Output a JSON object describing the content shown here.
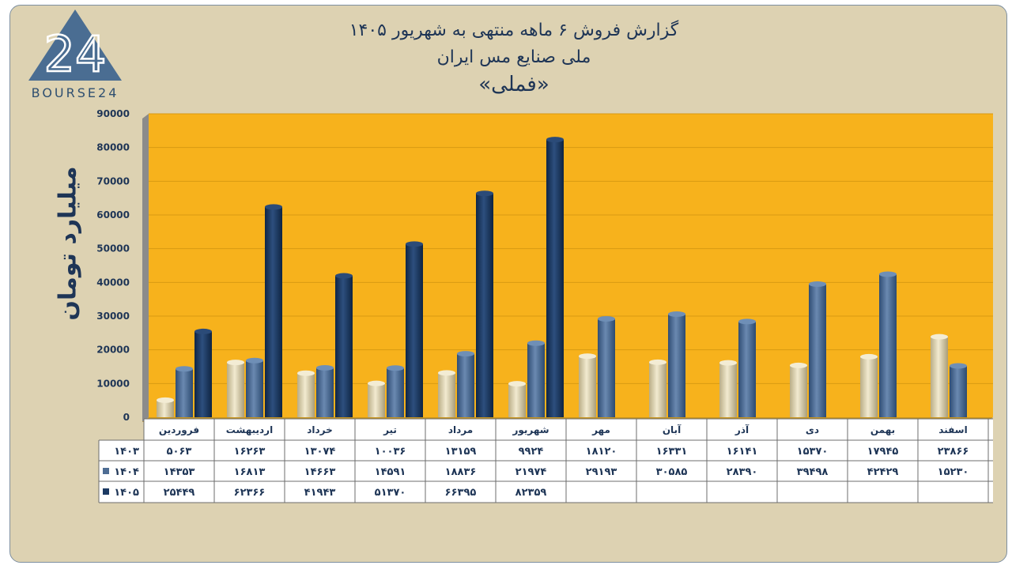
{
  "title": {
    "line1": "گزارش  فروش ۶ ماهه منتهی به شهریور ۱۴۰۵",
    "line2": "ملی صنایع مس ایران",
    "line3": "«فملی»"
  },
  "logo": {
    "text": "BOURSE24",
    "mark": "24"
  },
  "colors": {
    "plot_bg": "#f7b21c",
    "s1403": "#e6dcb6",
    "s1404": "#4e6d94",
    "s1405": "#1c3a63"
  },
  "chart_data": {
    "type": "bar",
    "ylabel": "میلیارد تومان",
    "ylim": [
      0,
      90000
    ],
    "yticks": [
      0,
      10000,
      20000,
      30000,
      40000,
      50000,
      60000,
      70000,
      80000,
      90000
    ],
    "ytick_labels": [
      "0",
      "10000",
      "20000",
      "30000",
      "40000",
      "50000",
      "60000",
      "70000",
      "80000",
      "90000"
    ],
    "categories": [
      "فروردین",
      "اردیبهشت",
      "خرداد",
      "تیر",
      "مرداد",
      "شهریور",
      "مهر",
      "آبان",
      "آذر",
      "دی",
      "بهمن",
      "اسفند"
    ],
    "series": [
      {
        "name": "۱۴۰۳",
        "values": [
          5063,
          16263,
          13074,
          10036,
          13159,
          9924,
          18120,
          16331,
          16141,
          15370,
          17945,
          23866
        ],
        "labels": [
          "۵۰۶۳",
          "۱۶۲۶۳",
          "۱۳۰۷۴",
          "۱۰۰۳۶",
          "۱۳۱۵۹",
          "۹۹۲۴",
          "۱۸۱۲۰",
          "۱۶۳۳۱",
          "۱۶۱۴۱",
          "۱۵۳۷۰",
          "۱۷۹۴۵",
          "۲۳۸۶۶"
        ]
      },
      {
        "name": "۱۴۰۴",
        "values": [
          14353,
          16813,
          14663,
          14591,
          18836,
          21974,
          29193,
          30585,
          28390,
          39498,
          42429,
          15230
        ],
        "labels": [
          "۱۴۳۵۳",
          "۱۶۸۱۳",
          "۱۴۶۶۳",
          "۱۴۵۹۱",
          "۱۸۸۳۶",
          "۲۱۹۷۴",
          "۲۹۱۹۳",
          "۳۰۵۸۵",
          "۲۸۳۹۰",
          "۳۹۴۹۸",
          "۴۲۴۲۹",
          "۱۵۲۳۰"
        ]
      },
      {
        "name": "۱۴۰۵",
        "values": [
          25449,
          62366,
          41943,
          51370,
          66395,
          82359,
          null,
          null,
          null,
          null,
          null,
          null
        ],
        "labels": [
          "۲۵۴۴۹",
          "۶۲۳۶۶",
          "۴۱۹۴۳",
          "۵۱۳۷۰",
          "۶۶۳۹۵",
          "۸۲۳۵۹",
          "",
          "",
          "",
          "",
          "",
          ""
        ]
      }
    ]
  }
}
